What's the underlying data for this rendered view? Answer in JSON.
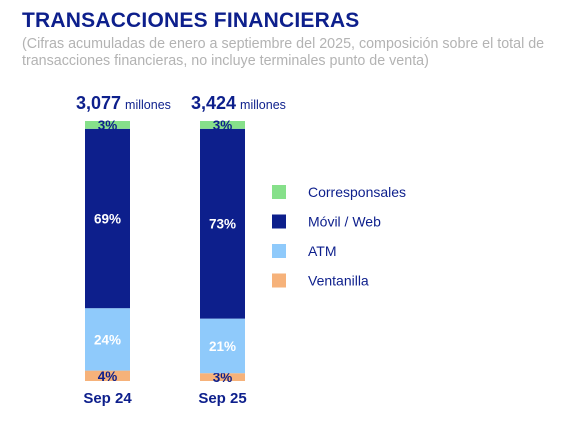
{
  "title": "TRANSACCIONES FINANCIERAS",
  "subtitle": "(Cifras acumuladas de enero a septiembre del 2025, composición sobre el total de transacciones financieras, no incluye terminales punto de venta)",
  "colors": {
    "title": "#0d1f8c",
    "subtitle": "#b3b3b3",
    "total_label": "#0d1f8c",
    "category_label": "#0d1f8c",
    "legend_text": "#0d1f8c"
  },
  "chart_data": {
    "type": "bar",
    "stacked": true,
    "categories": [
      "Sep 24",
      "Sep 25"
    ],
    "totals": [
      {
        "value": "3,077",
        "unit": "millones"
      },
      {
        "value": "3,424",
        "unit": "millones"
      }
    ],
    "series": [
      {
        "name": "Ventanilla",
        "values": [
          4,
          3
        ],
        "labels": [
          "4%",
          "3%"
        ],
        "color": "#f6b27a",
        "label_color": "#0d1f8c"
      },
      {
        "name": "ATM",
        "values": [
          24,
          21
        ],
        "labels": [
          "24%",
          "21%"
        ],
        "color": "#8fcafb",
        "label_color": "#ffffff"
      },
      {
        "name": "Móvil / Web",
        "values": [
          69,
          73
        ],
        "labels": [
          "69%",
          "73%"
        ],
        "color": "#0d1f8c",
        "label_color": "#ffffff"
      },
      {
        "name": "Corresponsales",
        "values": [
          3,
          3
        ],
        "labels": [
          "3%",
          "3%"
        ],
        "color": "#86e08a",
        "label_color": "#0d1f8c"
      }
    ],
    "legend_order": [
      "Corresponsales",
      "Móvil / Web",
      "ATM",
      "Ventanilla"
    ],
    "legend_position": "right"
  }
}
